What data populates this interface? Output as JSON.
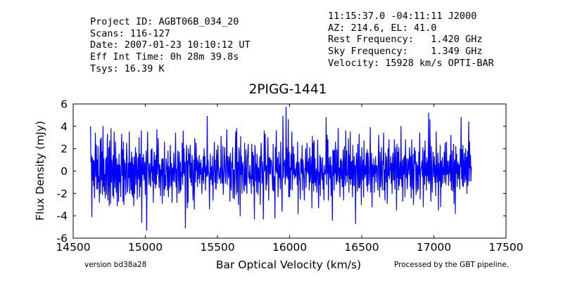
{
  "header": {
    "left_lines": [
      "Project ID: AGBT06B_034_20",
      "Scans: 116-127",
      "Date: 2007-01-23 10:10:12 UT",
      "Eff Int Time: 0h 28m 39.8s",
      "Tsys: 16.39 K"
    ],
    "right_lines": [
      "11:15:37.0 -04:11:11 J2000",
      "AZ: 214.6, EL: 41.0",
      "Rest Frequency:   1.420 GHz",
      "Sky Frequency:    1.349 GHz",
      "Velocity: 15928 km/s OPTI-BAR"
    ]
  },
  "footer": {
    "version": "version bd38a28",
    "processed": "Processed by the GBT pipeline."
  },
  "colors": {
    "line": "#0000ff",
    "processed_text": "#ff4444",
    "version_text": "#444444"
  },
  "chart_data": {
    "type": "line",
    "title": "2PIGG-1441",
    "xlabel": "Bar Optical Velocity (km/s)",
    "ylabel": "Flux Density (mJy)",
    "xlim": [
      14500,
      17500
    ],
    "ylim": [
      -6,
      6
    ],
    "xticks": [
      14500,
      15000,
      15500,
      16000,
      16500,
      17000,
      17500
    ],
    "yticks": [
      -6,
      -4,
      -2,
      0,
      2,
      4,
      6
    ],
    "grid": false,
    "series": [
      {
        "x_start": 14620,
        "x_end": 17260,
        "y": [
          4.0,
          0.8,
          1.4,
          -4.1,
          1.2,
          -0.8,
          1.0,
          -1.3,
          0.9,
          -2.4,
          0.6,
          3.4,
          -0.5,
          2.3,
          -1.6,
          1.0,
          -1.6,
          2.2,
          -1.0,
          -0.5,
          -2.8,
          1.0,
          2.8,
          -2.0,
          3.0,
          -0.8,
          1.7,
          -2.1,
          4.0,
          -1.4,
          1.1,
          -1.8,
          -0.3,
          -2.4,
          0.9,
          1.2,
          -2.1,
          0.7,
          3.3,
          -2.6,
          -0.7,
          2.1,
          -3.1,
          2.7,
          0.3,
          -2.9,
          3.8,
          -1.0,
          1.0,
          0.1,
          -2.2,
          1.4,
          -2.4,
          3.5,
          -0.6,
          -1.5,
          2.6,
          -0.2,
          -1.9,
          1.1,
          -3.1,
          0.4,
          0.6,
          -2.7,
          1.5,
          -1.0,
          0.5,
          -0.9,
          -2.3,
          1.4,
          3.3,
          -0.4,
          1.9,
          -2.7,
          2.6,
          -3.0,
          1.0,
          -0.7,
          0.7,
          -2.1,
          -0.8,
          2.5,
          1.1,
          -1.9,
          -1.4,
          0.7,
          -0.6,
          3.5,
          -2.0,
          0.6,
          0.8,
          -1.7,
          1.7,
          -2.1,
          1.2,
          -2.3,
          0.6,
          -3.1,
          1.3,
          -2.0,
          0.1,
          2.1,
          -1.2,
          1.6,
          0.6,
          -2.5,
          -0.3,
          1.2,
          -0.7,
          3.0,
          -2.3,
          1.5,
          -1.4,
          -0.3,
          3.6,
          -4.6,
          0.2,
          1.2,
          -0.3,
          1.5,
          -0.8,
          0.3,
          0.8,
          -2.1,
          0.2,
          1.8,
          -5.3,
          -0.2,
          3.5,
          1.0,
          0.1,
          -1.2,
          0.5,
          0.7,
          -1.2,
          -1.4,
          1.9,
          -0.1,
          2.0,
          -0.9,
          0.4,
          -2.8,
          0.7,
          1.7,
          -1.1,
          1.0,
          -1.5,
          1.4,
          -1.2,
          3.7,
          -0.3,
          0.6,
          2.9,
          -0.5,
          -1.5,
          0.6,
          0.5,
          -2.2,
          0.1,
          -0.4,
          1.1,
          -2.9,
          1.0,
          1.1,
          -0.8,
          -2.2,
          2.6,
          -1.6,
          -0.4,
          -1.3,
          1.1,
          0.6,
          -0.1,
          -1.7,
          1.8,
          -2.3,
          0.4,
          -0.5,
          -1.5,
          2.3,
          0.5,
          -1.3,
          0.7,
          -2.8,
          0.1,
          0.3,
          -0.9,
          1.6,
          0.1,
          -1.0,
          0.8,
          3.4,
          -1.4,
          0.2,
          -2.8,
          -0.3,
          1.8,
          0.6,
          -2.0,
          1.7,
          0.3,
          -1.9,
          0.8,
          -1.7,
          -0.1,
          -0.5,
          2.5,
          -1.2,
          3.6,
          -0.2,
          2.0,
          -0.4,
          0.8,
          -5.1,
          -0.1,
          1.4,
          2.3,
          -3.3,
          0.9,
          -2.8,
          2.0,
          0.7,
          1.5,
          -0.6,
          2.3,
          -1.0,
          0.7,
          -1.3,
          1.4,
          0.7,
          -2.6,
          -1.3,
          1.0,
          -3.4,
          2.9,
          1.1,
          -1.0,
          2.5,
          0.1,
          1.2,
          -1.4,
          0.9,
          -0.7,
          0.1,
          1.4,
          -1.1,
          0.7,
          -0.3,
          1.0,
          -0.4,
          -2.0,
          0.3,
          -0.8,
          1.3,
          -1.1,
          2.0,
          -0.1,
          1.3,
          -1.7,
          0.1,
          0.5,
          -0.5,
          4.9,
          -0.4,
          1.0,
          -0.2,
          -0.2,
          -3.4,
          -0.6,
          1.5,
          -0.8,
          0.2,
          0.4,
          -1.2,
          1.3,
          -2.6,
          -0.4,
          0.6,
          2.6,
          -1.0,
          1.0,
          -1.6,
          -1.6,
          1.9,
          1.1,
          -1.1,
          2.3,
          0.6,
          -0.3,
          -0.7,
          -0.4,
          0.3,
          -1.1,
          3.1,
          0.4,
          -1.0,
          -1.1,
          2.2,
          -2.1,
          -0.7,
          0.1,
          2.1,
          0.8,
          -1.1,
          -0.4,
          1.4,
          3.7,
          -1.2,
          1.3,
          0.2,
          -0.6,
          1.3,
          0.9,
          -2.7,
          1.6,
          -1.1,
          -1.7,
          0.8,
          0.3,
          2.1,
          -2.4,
          0.1,
          0.1,
          -2.5,
          -0.7,
          1.6,
          3.5,
          -2.1,
          3.8,
          0.3,
          -1.9,
          0.8,
          -3.0,
          2.1,
          1.7,
          -0.5,
          -4.0,
          3.1,
          -0.3,
          1.3,
          -2.0,
          0.4,
          0.8,
          0.1,
          -1.6,
          -1.8,
          2.5,
          -0.9,
          -1.3,
          1.9,
          -0.8,
          -2.0,
          1.1,
          1.5,
          2.4,
          -0.6,
          -0.1,
          -1.1,
          0.5,
          -0.7,
          -0.4,
          -2.0,
          2.4,
          -0.7,
          1.7,
          -1.3,
          1.4,
          -1.4,
          -4.3,
          2.3,
          1.6,
          -0.9,
          0.6,
          -1.9,
          1.5,
          0.2,
          -2.1,
          0.3,
          -0.5,
          -1.0,
          1.3,
          -3.0,
          0.7,
          2.5,
          1.2,
          -1.1,
          0.8,
          -0.1,
          -4.3,
          -0.4,
          3.6,
          0.0,
          3.3,
          0.7,
          -1.7,
          0.5,
          -1.2,
          -0.1,
          3.0,
          0.9,
          -2.6,
          1.2,
          -0.2,
          1.2,
          -0.3,
          0.9,
          1.0,
          0.4,
          -0.7,
          -1.7,
          2.4,
          -1.8,
          -0.6,
          -0.5,
          -4.2,
          2.1,
          0.0,
          3.6,
          -0.2,
          0.0,
          1.2,
          -2.3,
          -0.6,
          1.7,
          -0.6,
          0.6,
          -1.6,
          2.6,
          -0.3,
          -1.0,
          -3.6,
          0.7,
          4.9,
          -0.6,
          0.6,
          0.7,
          1.0,
          -1.2,
          -0.6,
          5.7,
          -0.5,
          2.1,
          -0.1,
          -0.7,
          4.6,
          -2.3,
          1.7,
          -2.3,
          0.3,
          -1.6,
          1.5,
          0.1,
          3.5,
          -1.7,
          0.0,
          2.2,
          -0.3,
          1.5,
          -0.7,
          0.2,
          -0.4,
          -0.5,
          0.6,
          0.8,
          -1.2,
          2.6,
          -3.8,
          0.5,
          0.8,
          -0.6,
          -0.9,
          -2.5,
          1.1,
          0.8,
          -0.2,
          2.3,
          -1.7,
          1.0,
          0.2,
          -0.7,
          -2.6,
          0.2,
          0.1,
          2.0,
          -1.5,
          0.3,
          2.5,
          -0.1,
          0.8,
          -0.3,
          1.1,
          -1.7,
          2.1,
          -1.0,
          -0.5,
          1.3,
          0.2,
          -3.3,
          3.1,
          -1.1,
          2.5,
          -1.8,
          2.7,
          -1.0,
          1.1,
          -1.3,
          -0.3,
          0.2,
          -1.9,
          -0.4,
          2.8,
          -0.1,
          -3.3,
          -0.1,
          -1.2,
          1.4,
          -2.2,
          1.2,
          0.6,
          -0.4,
          -0.8,
          1.2,
          -1.6,
          -0.2,
          -2.6,
          0.5,
          -0.2,
          -0.3,
          0.1,
          4.8,
          -1.2,
          3.2,
          -0.2,
          2.8,
          -2.6,
          0.0,
          1.2,
          -0.2,
          -0.7,
          1.3,
          -2.2,
          0.5,
          -1.3,
          -4.4,
          1.9,
          -0.4,
          1.8,
          -1.7,
          1.9,
          -0.2,
          2.6,
          -0.5,
          -1.2,
          1.9,
          -0.9,
          0.0,
          3.8,
          -0.3,
          -1.0,
          0.3,
          -2.3,
          0.9,
          1.1,
          -0.7,
          0.9,
          -1.4,
          -1.4,
          1.9,
          -2.6,
          0.6,
          2.2,
          -0.8,
          -1.3,
          3.6,
          -0.4,
          1.8,
          -1.0,
          -0.4,
          -0.2,
          2.9,
          -1.9,
          1.4,
          -0.7,
          3.5,
          -1.2,
          0.8,
          -0.7,
          0.9,
          -2.3,
          2.3,
          -1.3,
          0.5,
          1.3,
          -1.3,
          0.5,
          -4.7,
          0.2,
          1.6,
          0.5,
          -1.8,
          2.4,
          0.4,
          -1.5,
          3.3,
          -1.5,
          -1.1,
          1.3,
          -0.2,
          -3.0,
          2.1,
          -0.1,
          -0.8,
          1.0,
          -2.3,
          2.7,
          -0.2,
          -0.6,
          0.5,
          -0.3,
          1.6,
          -1.3,
          1.9,
          -1.8,
          1.6,
          1.0,
          -1.2,
          -0.6,
          0.6,
          3.9,
          -1.9,
          0.0,
          1.6,
          -3.2,
          0.6,
          0.0,
          -0.5,
          1.1,
          -1.9,
          0.5,
          -0.2,
          1.3,
          -1.0,
          0.4,
          0.5,
          -0.2,
          -1.7,
          1.3,
          3.2,
          -0.3,
          -2.3,
          1.7,
          -1.4,
          -0.1,
          2.1,
          -0.8,
          -1.7,
          0.9,
          0.6,
          3.4,
          -1.7,
          0.1,
          -2.6,
          1.6,
          0.4,
          -1.0,
          1.3,
          -2.9,
          -0.7,
          2.0,
          -0.4,
          2.8,
          -0.7,
          0.1,
          0.3,
          1.3,
          -1.1,
          0.7,
          -2.0,
          1.1,
          1.6,
          -0.8,
          -0.8,
          2.8,
          -1.6,
          0.7,
          2.1,
          -0.2,
          -3.5,
          2.4,
          -0.6,
          1.7,
          -1.7,
          2.1,
          -1.3,
          -0.6,
          0.8,
          -0.7,
          4.0,
          -0.3,
          -1.4,
          1.0,
          -2.7,
          0.2,
          1.2,
          -0.3,
          1.4,
          -2.3,
          2.8,
          0.3,
          -0.6,
          1.1,
          -1.6,
          -0.6,
          1.1,
          0.6,
          -0.3,
          2.1,
          0.9,
          -1.4,
          1.3,
          -2.4,
          2.8,
          -0.4,
          -1.6,
          1.5,
          -3.0,
          -0.9,
          2.1,
          0.7,
          1.8,
          0.0,
          -2.1,
          0.8,
          0.4,
          -1.8,
          0.5,
          -1.6,
          1.7,
          -0.3,
          3.4,
          -2.5,
          -0.1,
          0.2,
          0.4,
          0.9,
          -0.5,
          2.1,
          -3.2,
          -0.1,
          1.8,
          -1.2,
          2.7,
          -0.4,
          0.7,
          -1.7,
          1.2,
          -0.4,
          0.9,
          -0.9,
          5.2,
          -1.1,
          -0.8,
          4.6,
          -0.1,
          -2.7,
          2.2,
          0.3,
          -1.9,
          -0.4,
          1.7,
          0.2,
          -0.5,
          1.3,
          -1.0,
          0.5,
          -2.2,
          3.5,
          0.1,
          -1.0,
          0.3,
          1.6,
          -3.5,
          0.7,
          -0.7,
          -0.9,
          2.3,
          -3.2,
          0.9,
          -1.4,
          0.6,
          1.2,
          -1.1,
          0.3,
          -0.3,
          1.7,
          -1.0,
          2.5,
          0.2,
          -1.2,
          2.6,
          -0.3,
          -0.3,
          0.9,
          0.0,
          -1.3,
          0.9,
          -0.2,
          1.4,
          -0.9,
          3.2,
          -1.7,
          0.0,
          1.8,
          -1.8,
          -1.2,
          2.4,
          -2.9,
          0.6,
          1.0,
          -3.8,
          2.2,
          -0.2,
          1.5,
          -1.4,
          0.5,
          0.8,
          -0.7,
          0.6,
          0.1,
          -1.6,
          2.0,
          0.4,
          4.8,
          -0.7,
          1.9,
          -1.3,
          2.3,
          -1.4,
          0.3,
          1.6,
          -1.0,
          -0.1,
          2.0,
          -0.8,
          1.2,
          -2.0,
          1.8,
          -1.3,
          0.7,
          4.4,
          -0.9,
          2.6,
          0.3,
          1.4,
          -0.9,
          0.4
        ]
      }
    ]
  }
}
